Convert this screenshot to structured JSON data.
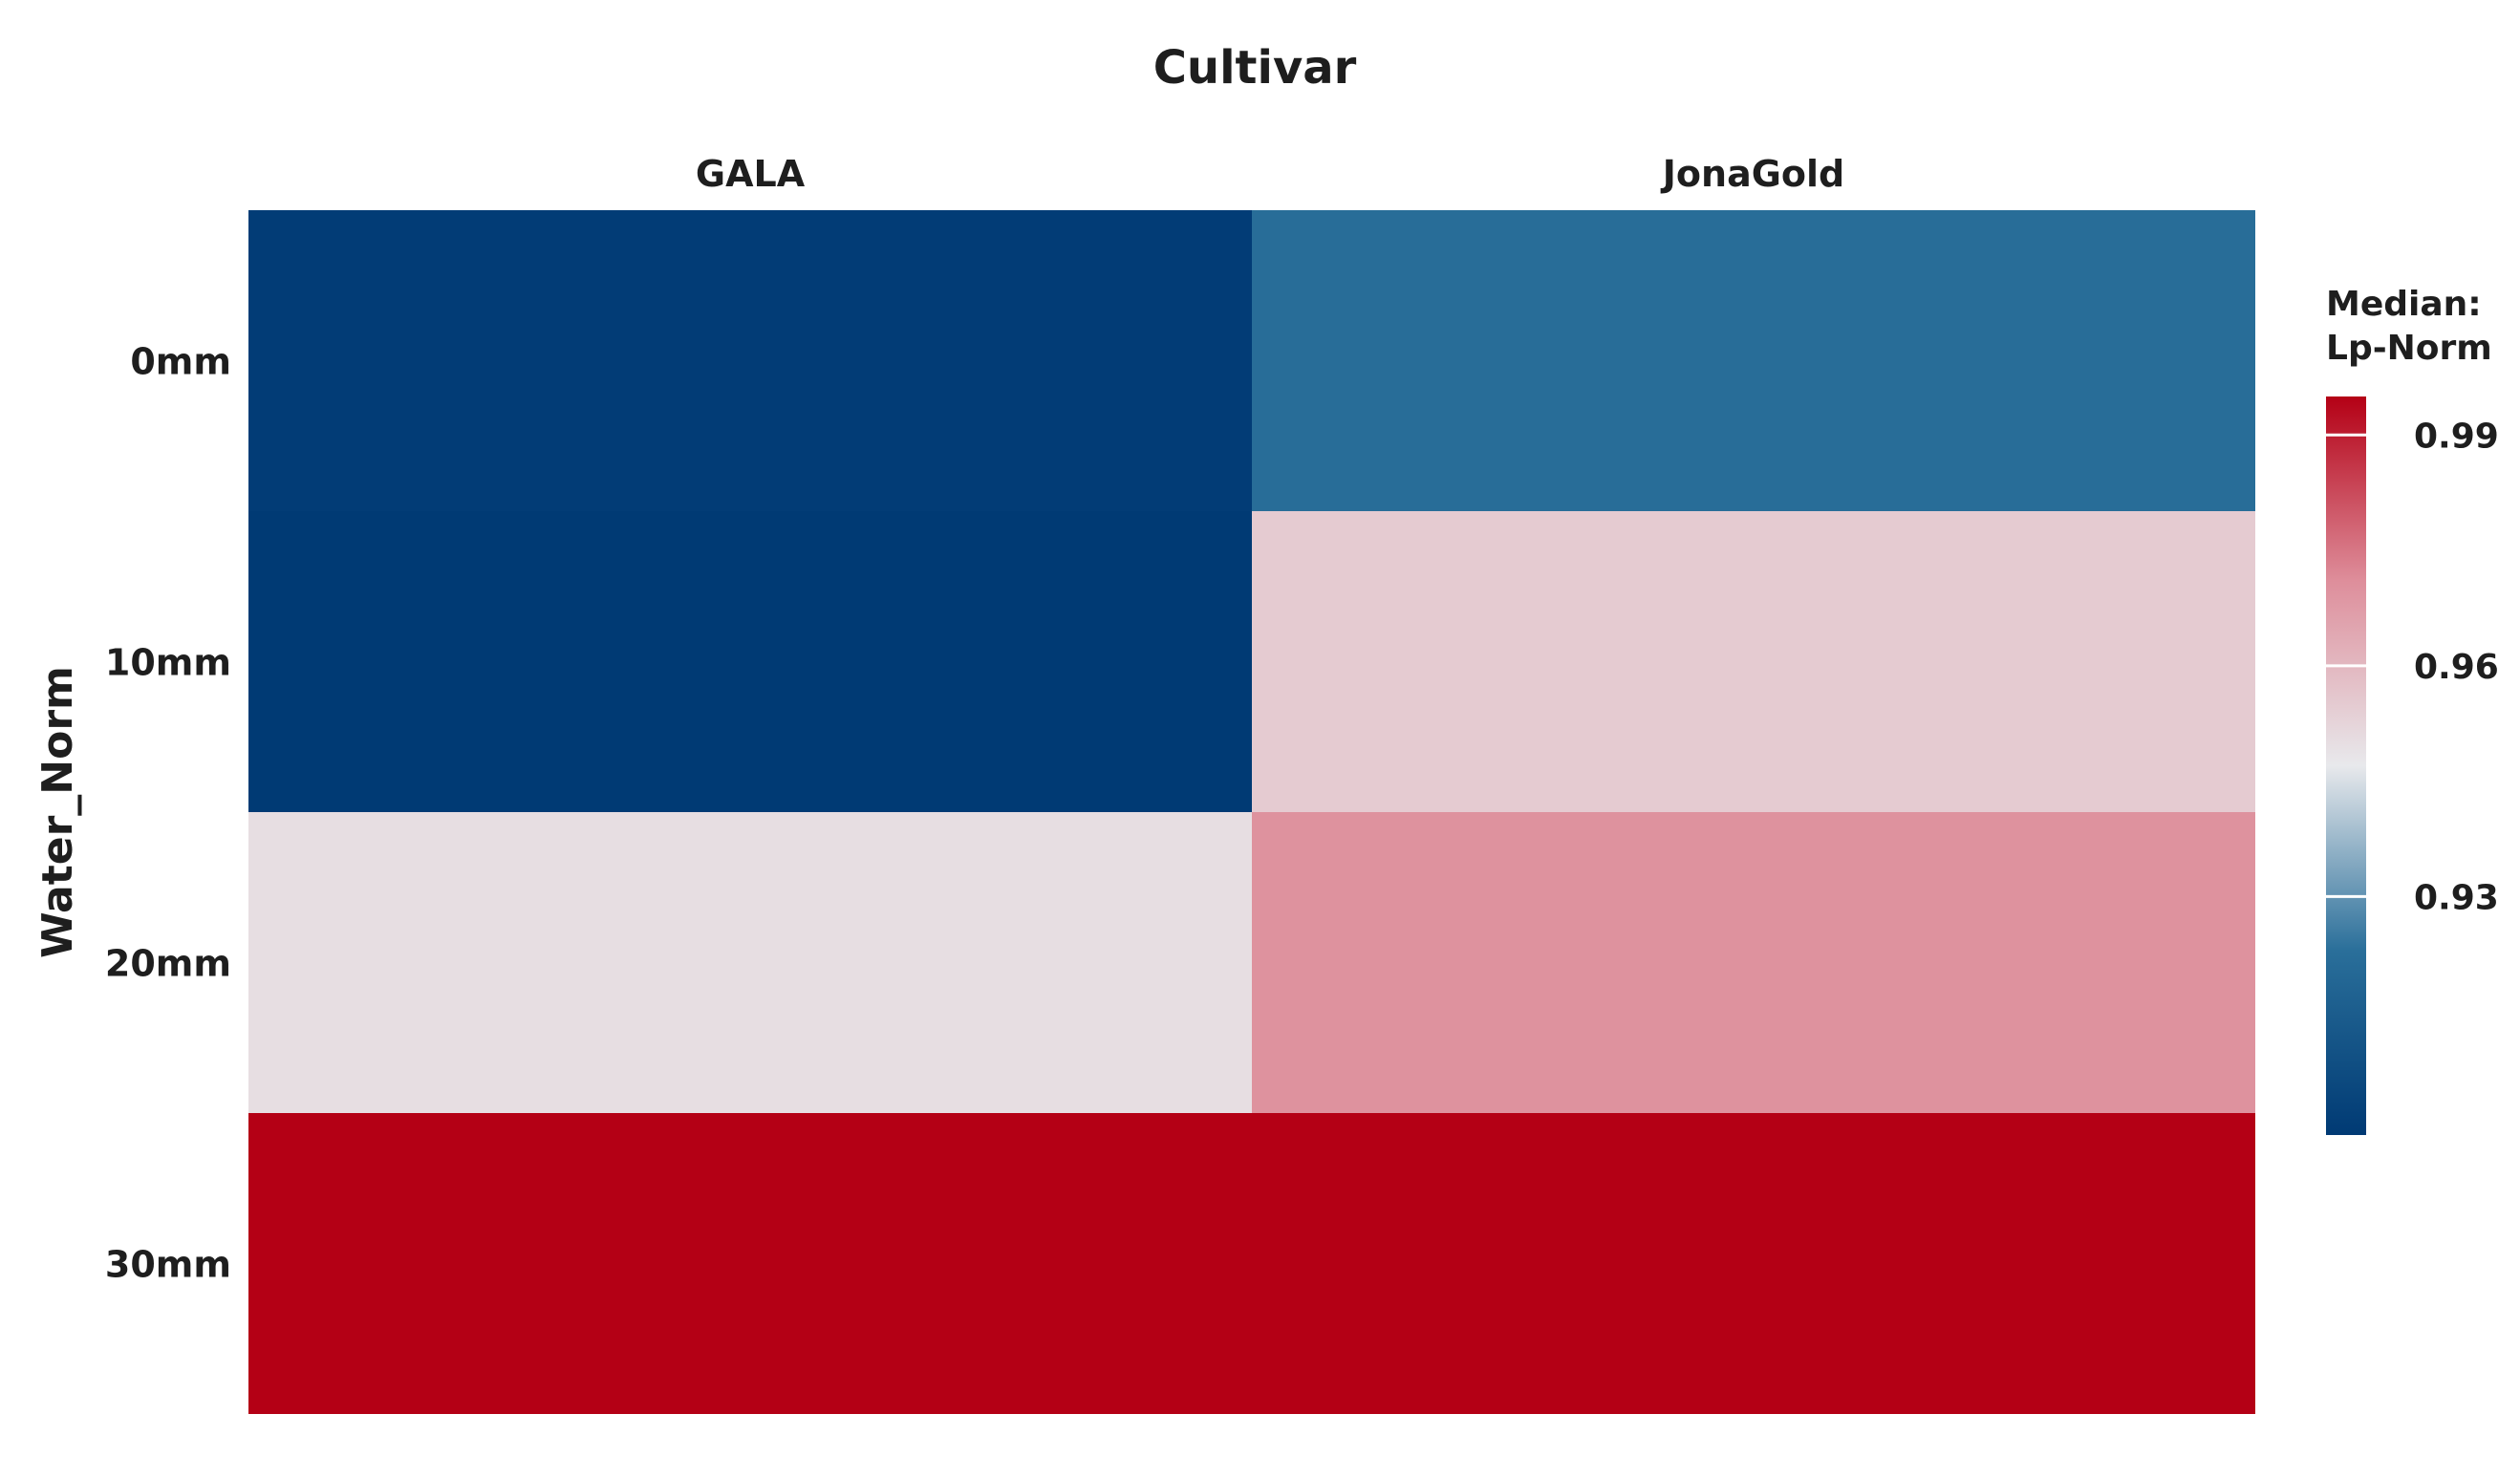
{
  "chart_data": {
    "type": "heatmap",
    "title": "Cultivar",
    "xlabel": "",
    "ylabel": "Water_Norm",
    "x_categories": [
      "GALA",
      "JonaGold"
    ],
    "y_categories": [
      "0mm",
      "10mm",
      "20mm",
      "30mm"
    ],
    "values": [
      [
        0.9,
        0.922
      ],
      [
        0.899,
        0.955
      ],
      [
        0.95,
        0.97
      ],
      [
        0.995,
        0.995
      ]
    ],
    "colorbar": {
      "title_lines": [
        "Median:",
        "Lp-Norm"
      ],
      "range": [
        0.899,
        0.995
      ],
      "ticks": [
        0.93,
        0.96,
        0.99
      ],
      "tick_labels": [
        "0.93",
        "0.96",
        "0.99"
      ],
      "colors": {
        "low": "#003a74",
        "mid_low": "#2a6f9a",
        "mid": "#e8e9ec",
        "mid_high": "#de8e9b",
        "high": "#b40015"
      }
    },
    "grid": false,
    "legend": "right"
  }
}
